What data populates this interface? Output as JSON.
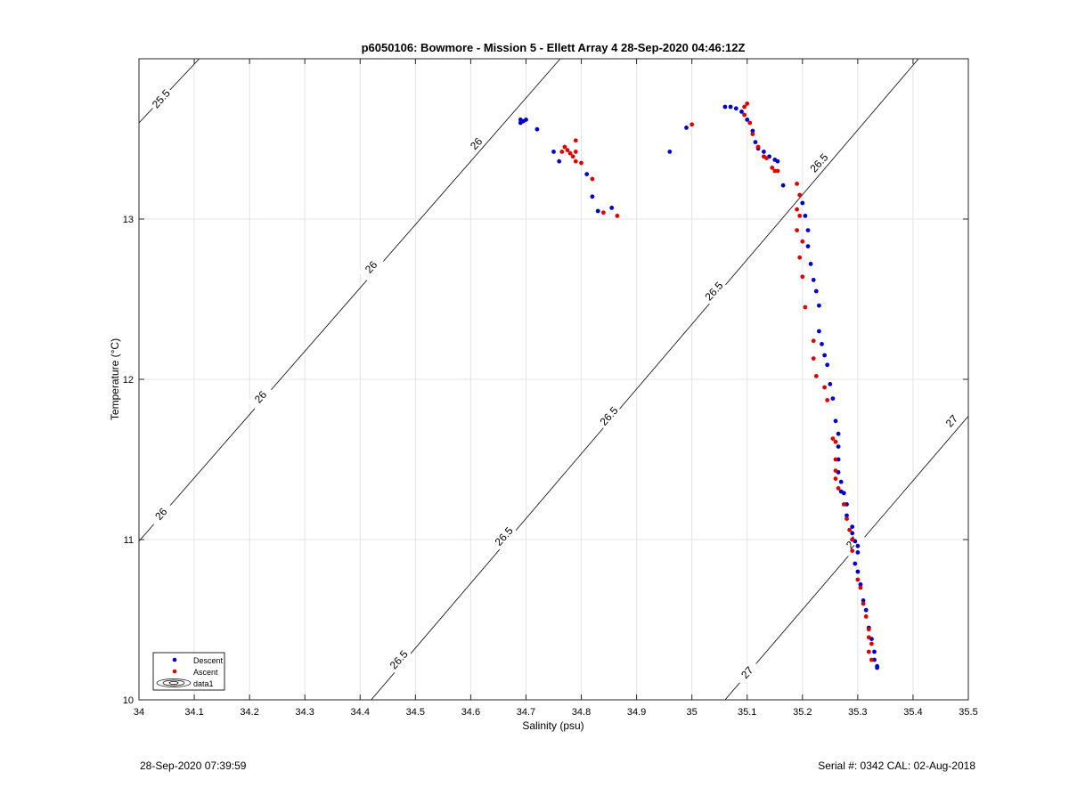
{
  "chart_data": {
    "type": "scatter",
    "title": "p6050106: Bowmore - Mission 5 - Ellett Array 4 28-Sep-2020 04:46:12Z",
    "xlabel": "Salinity (psu)",
    "ylabel": "Temperature (°C)",
    "xlim": [
      34,
      35.5
    ],
    "ylim": [
      10,
      14
    ],
    "xticks": [
      "34",
      "34.1",
      "34.2",
      "34.3",
      "34.4",
      "34.5",
      "34.6",
      "34.7",
      "34.8",
      "34.9",
      "35",
      "35.1",
      "35.2",
      "35.3",
      "35.4",
      "35.5"
    ],
    "yticks": [
      "10",
      "11",
      "12",
      "13"
    ],
    "grid": true,
    "legend_position": "bottom-left",
    "legend": [
      "Descent",
      "Ascent",
      "data1"
    ],
    "contours": [
      {
        "level": "25.5",
        "points": [
          [
            34.0,
            13.6
          ],
          [
            34.109,
            14.0
          ]
        ]
      },
      {
        "level": "26",
        "points": [
          [
            34.0,
            10.99
          ],
          [
            34.762,
            14.0
          ]
        ]
      },
      {
        "level": "26.5",
        "points": [
          [
            34.42,
            10.0
          ],
          [
            35.41,
            14.0
          ]
        ]
      },
      {
        "level": "27",
        "points": [
          [
            35.06,
            10.0
          ],
          [
            35.5,
            11.77
          ]
        ]
      }
    ],
    "contour_labels": [
      {
        "text": "25.5",
        "x": 34.04,
        "y": 13.75
      },
      {
        "text": "26",
        "x": 34.04,
        "y": 11.16
      },
      {
        "text": "26",
        "x": 34.22,
        "y": 11.89
      },
      {
        "text": "26",
        "x": 34.42,
        "y": 12.7
      },
      {
        "text": "26",
        "x": 34.61,
        "y": 13.47
      },
      {
        "text": "26.5",
        "x": 34.47,
        "y": 10.25
      },
      {
        "text": "26.5",
        "x": 34.66,
        "y": 11.02
      },
      {
        "text": "26.5",
        "x": 34.85,
        "y": 11.77
      },
      {
        "text": "26.5",
        "x": 35.04,
        "y": 12.55
      },
      {
        "text": "26.5",
        "x": 35.23,
        "y": 13.35
      },
      {
        "text": "27",
        "x": 35.1,
        "y": 10.17
      },
      {
        "text": "27",
        "x": 35.29,
        "y": 10.98
      },
      {
        "text": "27",
        "x": 35.47,
        "y": 11.74
      }
    ],
    "series": [
      {
        "name": "Descent",
        "color": "#0000cc",
        "points": [
          [
            34.69,
            13.62
          ],
          [
            34.695,
            13.61
          ],
          [
            34.7,
            13.62
          ],
          [
            34.69,
            13.6
          ],
          [
            34.72,
            13.56
          ],
          [
            34.75,
            13.42
          ],
          [
            34.76,
            13.36
          ],
          [
            34.81,
            13.28
          ],
          [
            34.82,
            13.14
          ],
          [
            34.83,
            13.05
          ],
          [
            34.855,
            13.07
          ],
          [
            34.96,
            13.42
          ],
          [
            34.99,
            13.57
          ],
          [
            35.06,
            13.7
          ],
          [
            35.07,
            13.7
          ],
          [
            35.08,
            13.69
          ],
          [
            35.09,
            13.67
          ],
          [
            35.1,
            13.62
          ],
          [
            35.11,
            13.55
          ],
          [
            35.115,
            13.48
          ],
          [
            35.12,
            13.44
          ],
          [
            35.13,
            13.42
          ],
          [
            35.14,
            13.39
          ],
          [
            35.15,
            13.37
          ],
          [
            35.155,
            13.36
          ],
          [
            35.165,
            13.21
          ],
          [
            35.2,
            13.1
          ],
          [
            35.205,
            13.02
          ],
          [
            35.21,
            12.93
          ],
          [
            35.21,
            12.83
          ],
          [
            35.215,
            12.72
          ],
          [
            35.22,
            12.62
          ],
          [
            35.225,
            12.55
          ],
          [
            35.23,
            12.46
          ],
          [
            35.23,
            12.3
          ],
          [
            35.235,
            12.22
          ],
          [
            35.24,
            12.15
          ],
          [
            35.245,
            12.09
          ],
          [
            35.25,
            11.97
          ],
          [
            35.255,
            11.88
          ],
          [
            35.26,
            11.74
          ],
          [
            35.265,
            11.66
          ],
          [
            35.265,
            11.58
          ],
          [
            35.265,
            11.5
          ],
          [
            35.265,
            11.42
          ],
          [
            35.27,
            11.36
          ],
          [
            35.27,
            11.3
          ],
          [
            35.275,
            11.29
          ],
          [
            35.28,
            11.22
          ],
          [
            35.28,
            11.15
          ],
          [
            35.29,
            11.08
          ],
          [
            35.29,
            11.04
          ],
          [
            35.295,
            10.99
          ],
          [
            35.3,
            10.96
          ],
          [
            35.3,
            10.92
          ],
          [
            35.295,
            10.85
          ],
          [
            35.3,
            10.8
          ],
          [
            35.305,
            10.72
          ],
          [
            35.31,
            10.62
          ],
          [
            35.315,
            10.56
          ],
          [
            35.32,
            10.45
          ],
          [
            35.325,
            10.38
          ],
          [
            35.33,
            10.3
          ],
          [
            35.33,
            10.25
          ],
          [
            35.335,
            10.21
          ],
          [
            35.335,
            10.2
          ]
        ]
      },
      {
        "name": "Ascent",
        "color": "#dd0000",
        "points": [
          [
            34.77,
            13.45
          ],
          [
            34.775,
            13.43
          ],
          [
            34.78,
            13.41
          ],
          [
            34.785,
            13.39
          ],
          [
            34.79,
            13.42
          ],
          [
            34.79,
            13.49
          ],
          [
            34.79,
            13.36
          ],
          [
            34.8,
            13.35
          ],
          [
            34.82,
            13.25
          ],
          [
            34.84,
            13.04
          ],
          [
            34.865,
            13.02
          ],
          [
            34.765,
            13.42
          ],
          [
            35.0,
            13.59
          ],
          [
            35.095,
            13.7
          ],
          [
            35.1,
            13.72
          ],
          [
            35.095,
            13.65
          ],
          [
            35.105,
            13.6
          ],
          [
            35.11,
            13.53
          ],
          [
            35.12,
            13.45
          ],
          [
            35.13,
            13.39
          ],
          [
            35.135,
            13.38
          ],
          [
            35.145,
            13.32
          ],
          [
            35.155,
            13.3
          ],
          [
            35.15,
            13.3
          ],
          [
            35.19,
            13.22
          ],
          [
            35.195,
            13.15
          ],
          [
            35.19,
            13.06
          ],
          [
            35.195,
            13.02
          ],
          [
            35.19,
            12.93
          ],
          [
            35.2,
            12.86
          ],
          [
            35.195,
            12.76
          ],
          [
            35.2,
            12.64
          ],
          [
            35.205,
            12.45
          ],
          [
            35.22,
            12.24
          ],
          [
            35.22,
            12.13
          ],
          [
            35.225,
            12.02
          ],
          [
            35.24,
            11.95
          ],
          [
            35.245,
            11.87
          ],
          [
            35.255,
            11.63
          ],
          [
            35.26,
            11.61
          ],
          [
            35.26,
            11.5
          ],
          [
            35.26,
            11.43
          ],
          [
            35.26,
            11.38
          ],
          [
            35.265,
            11.32
          ],
          [
            35.275,
            11.22
          ],
          [
            35.28,
            11.13
          ],
          [
            35.285,
            11.06
          ],
          [
            35.29,
            11.0
          ],
          [
            35.29,
            10.93
          ],
          [
            35.3,
            10.75
          ],
          [
            35.305,
            10.7
          ],
          [
            35.31,
            10.6
          ],
          [
            35.315,
            10.52
          ],
          [
            35.32,
            10.44
          ],
          [
            35.32,
            10.39
          ],
          [
            35.325,
            10.35
          ],
          [
            35.32,
            10.3
          ],
          [
            35.325,
            10.25
          ]
        ]
      }
    ]
  },
  "footer": {
    "left_text": "28-Sep-2020 07:39:59",
    "right_text": "Serial #: 0342  CAL: 02-Aug-2018"
  }
}
